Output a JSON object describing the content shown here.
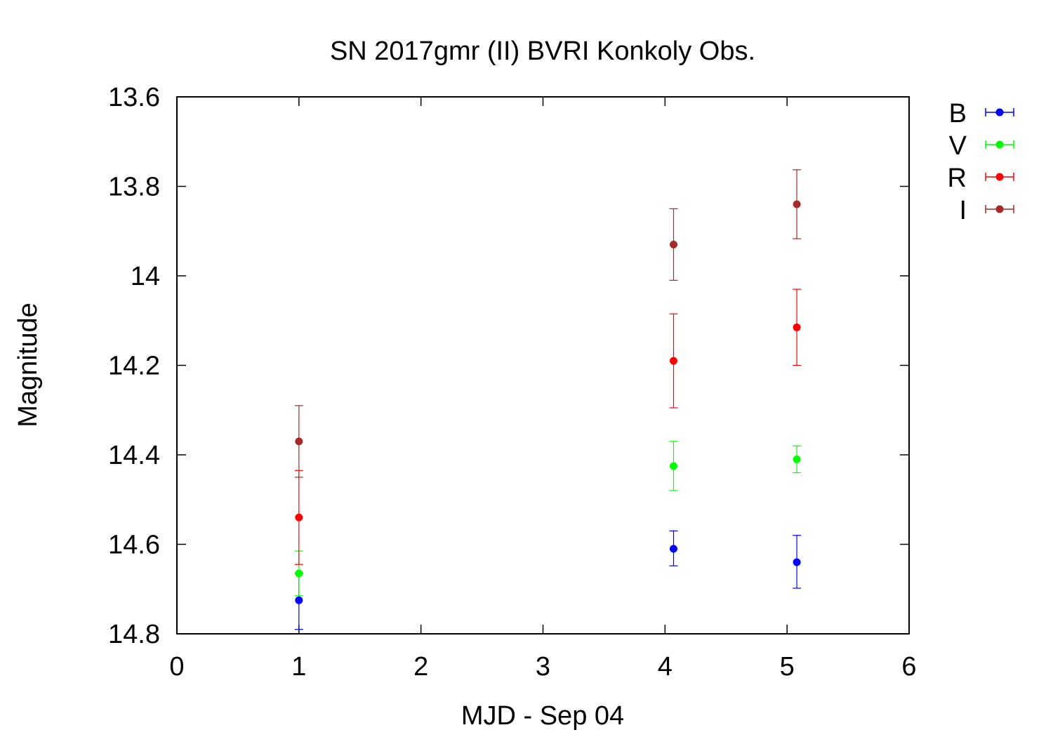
{
  "chart_data": {
    "type": "scatter",
    "title": "SN 2017gmr (II) BVRI Konkoly Obs.",
    "xlabel": "MJD - Sep 04",
    "ylabel": "Magnitude",
    "xlim": [
      0,
      6
    ],
    "ylim": [
      14.8,
      13.6
    ],
    "y_inverted": true,
    "xticks": [
      0,
      1,
      2,
      3,
      4,
      5,
      6
    ],
    "xtick_labels": [
      "0",
      "1",
      "2",
      "3",
      "4",
      "5",
      "6"
    ],
    "yticks": [
      13.6,
      13.8,
      14.0,
      14.2,
      14.4,
      14.6,
      14.8
    ],
    "ytick_labels": [
      "13.6",
      "13.8",
      "14",
      "14.2",
      "14.4",
      "14.6",
      "14.8"
    ],
    "grid": false,
    "legend_position": "right",
    "error_bars": true,
    "series": [
      {
        "name": "B",
        "color": "#0000ff",
        "x": [
          1.0,
          4.07,
          5.08
        ],
        "y": [
          14.725,
          14.61,
          14.64
        ],
        "yerr_low": [
          0.06,
          0.04,
          0.06
        ],
        "yerr_high": [
          0.065,
          0.038,
          0.058
        ]
      },
      {
        "name": "V",
        "color": "#00ff00",
        "x": [
          1.0,
          4.07,
          5.08
        ],
        "y": [
          14.665,
          14.425,
          14.41
        ],
        "yerr_low": [
          0.05,
          0.055,
          0.03
        ],
        "yerr_high": [
          0.05,
          0.055,
          0.03
        ]
      },
      {
        "name": "R",
        "color": "#ff0000",
        "x": [
          1.0,
          4.07,
          5.08
        ],
        "y": [
          14.54,
          14.19,
          14.115
        ],
        "yerr_low": [
          0.105,
          0.105,
          0.085
        ],
        "yerr_high": [
          0.105,
          0.105,
          0.085
        ]
      },
      {
        "name": "I",
        "color": "#a52a2a",
        "x": [
          1.0,
          4.07,
          5.08
        ],
        "y": [
          14.37,
          13.93,
          13.84
        ],
        "yerr_low": [
          0.08,
          0.08,
          0.077
        ],
        "yerr_high": [
          0.08,
          0.08,
          0.077
        ]
      }
    ]
  }
}
